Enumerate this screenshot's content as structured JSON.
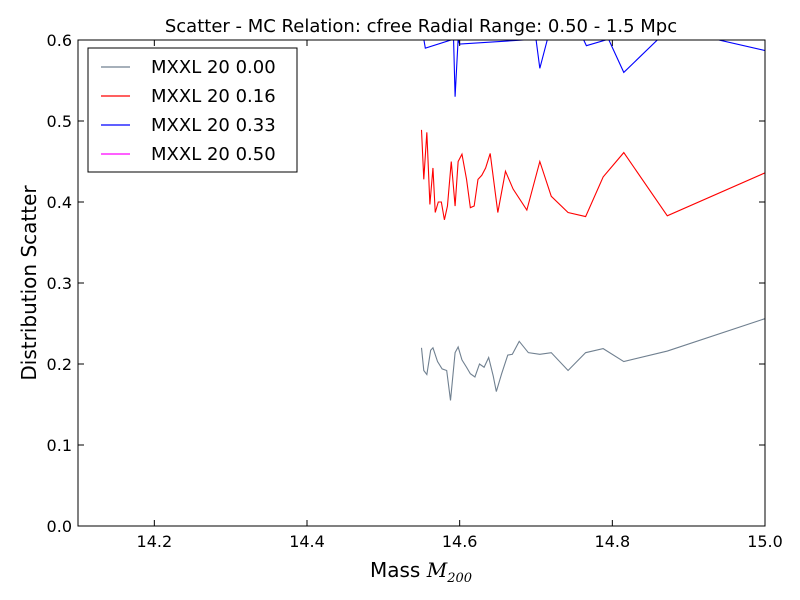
{
  "chart_data": {
    "type": "line",
    "title": "Scatter - MC Relation: cfree Radial Range: 0.50 - 1.5 Mpc",
    "xlabel_prefix": "Mass ",
    "xlabel_math": "M",
    "xlabel_sub": "200",
    "ylabel": "Distribution Scatter",
    "xlim": [
      14.1,
      15.0
    ],
    "ylim": [
      0.0,
      0.6
    ],
    "xticks": [
      14.2,
      14.4,
      14.6,
      14.8,
      15.0
    ],
    "xtick_labels": [
      "14.2",
      "14.4",
      "14.6",
      "14.8",
      "15.0"
    ],
    "yticks": [
      0.0,
      0.1,
      0.2,
      0.3,
      0.4,
      0.5,
      0.6
    ],
    "ytick_labels": [
      "0.0",
      "0.1",
      "0.2",
      "0.3",
      "0.4",
      "0.5",
      "0.6"
    ],
    "grid": false,
    "legend_position": "top-left",
    "series": [
      {
        "name": "MXXL 20 0.00",
        "color": "#708090",
        "x": [
          14.55,
          14.553,
          14.557,
          14.562,
          14.565,
          14.571,
          14.577,
          14.583,
          14.588,
          14.594,
          14.598,
          14.603,
          14.609,
          14.614,
          14.62,
          14.626,
          14.632,
          14.638,
          14.644,
          14.648,
          14.655,
          14.663,
          14.669,
          14.678,
          14.69,
          14.705,
          14.72,
          14.742,
          14.765,
          14.788,
          14.815,
          14.872,
          15.0
        ],
        "y": [
          0.22,
          0.192,
          0.187,
          0.217,
          0.22,
          0.203,
          0.194,
          0.192,
          0.155,
          0.214,
          0.221,
          0.205,
          0.196,
          0.188,
          0.184,
          0.2,
          0.196,
          0.208,
          0.185,
          0.166,
          0.188,
          0.211,
          0.212,
          0.228,
          0.214,
          0.212,
          0.214,
          0.192,
          0.214,
          0.219,
          0.203,
          0.216,
          0.256
        ]
      },
      {
        "name": "MXXL 20 0.16",
        "color": "#ff0000",
        "x": [
          14.55,
          14.553,
          14.557,
          14.561,
          14.565,
          14.568,
          14.572,
          14.576,
          14.58,
          14.584,
          14.589,
          14.594,
          14.598,
          14.603,
          14.609,
          14.614,
          14.619,
          14.624,
          14.629,
          14.634,
          14.64,
          14.65,
          14.66,
          14.67,
          14.688,
          14.705,
          14.72,
          14.742,
          14.765,
          14.788,
          14.815,
          14.872,
          15.0
        ],
        "y": [
          0.489,
          0.428,
          0.486,
          0.397,
          0.442,
          0.387,
          0.4,
          0.4,
          0.378,
          0.395,
          0.45,
          0.395,
          0.45,
          0.459,
          0.428,
          0.393,
          0.395,
          0.428,
          0.433,
          0.442,
          0.46,
          0.387,
          0.438,
          0.416,
          0.39,
          0.45,
          0.407,
          0.387,
          0.382,
          0.431,
          0.461,
          0.383,
          0.436
        ]
      },
      {
        "name": "MXXL 20 0.33",
        "color": "#0000ff",
        "x": [
          14.553,
          14.555,
          14.592,
          14.594,
          14.598,
          14.6,
          14.7,
          14.705,
          14.715,
          14.762,
          14.766,
          14.795,
          14.815,
          14.86,
          14.935,
          15.0
        ],
        "y": [
          0.601,
          0.59,
          0.601,
          0.53,
          0.601,
          0.595,
          0.601,
          0.565,
          0.601,
          0.601,
          0.593,
          0.601,
          0.56,
          0.601,
          0.601,
          0.587
        ]
      },
      {
        "name": "MXXL 20 0.50",
        "color": "#ff00ff",
        "x": [],
        "y": []
      }
    ]
  }
}
